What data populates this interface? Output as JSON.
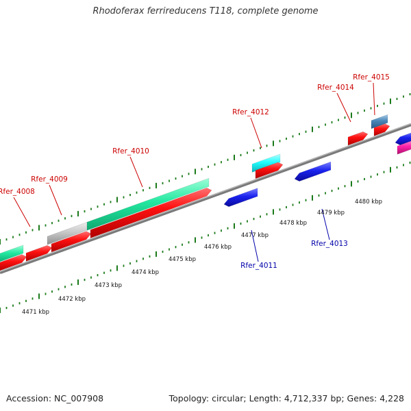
{
  "title": "Rhodoferax ferrireducens T118, complete genome",
  "footer": {
    "accession": "Accession: NC_007908",
    "stats": "Topology: circular; Length: 4,712,337 bp; Genes: 4,228"
  },
  "colors": {
    "forward_label": "#cc0000",
    "reverse_label": "#0000aa",
    "tick": "#1a7a1a",
    "backbone": "#7a7a7a"
  },
  "scale": {
    "unit": "kbp",
    "labels": [
      "4471 kbp",
      "4472 kbp",
      "4473 kbp",
      "4474 kbp",
      "4475 kbp",
      "4476 kbp",
      "4477 kbp",
      "4478 kbp",
      "4479 kbp",
      "4480 kbp"
    ]
  },
  "gene_labels": [
    {
      "name": "Rfer_4008",
      "strand": "forward"
    },
    {
      "name": "Rfer_4009",
      "strand": "forward"
    },
    {
      "name": "Rfer_4010",
      "strand": "forward"
    },
    {
      "name": "Rfer_4012",
      "strand": "forward"
    },
    {
      "name": "Rfer_4014",
      "strand": "forward"
    },
    {
      "name": "Rfer_4015",
      "strand": "forward"
    },
    {
      "name": "Rfer_4011",
      "strand": "reverse"
    },
    {
      "name": "Rfer_4013",
      "strand": "reverse"
    }
  ],
  "features": [
    {
      "type": "gene",
      "strand": "forward",
      "color": "#ff1111"
    },
    {
      "type": "cds",
      "strand": "forward",
      "color": "#22e8a0"
    },
    {
      "type": "cds",
      "strand": "forward",
      "color": "#c8c8c8"
    },
    {
      "type": "cds",
      "strand": "forward",
      "color": "#22ffff"
    },
    {
      "type": "cds",
      "strand": "forward",
      "color": "#4a86b8"
    },
    {
      "type": "gene",
      "strand": "reverse",
      "color": "#1a22ee"
    },
    {
      "type": "cds",
      "strand": "reverse",
      "color": "#ff22aa"
    }
  ]
}
